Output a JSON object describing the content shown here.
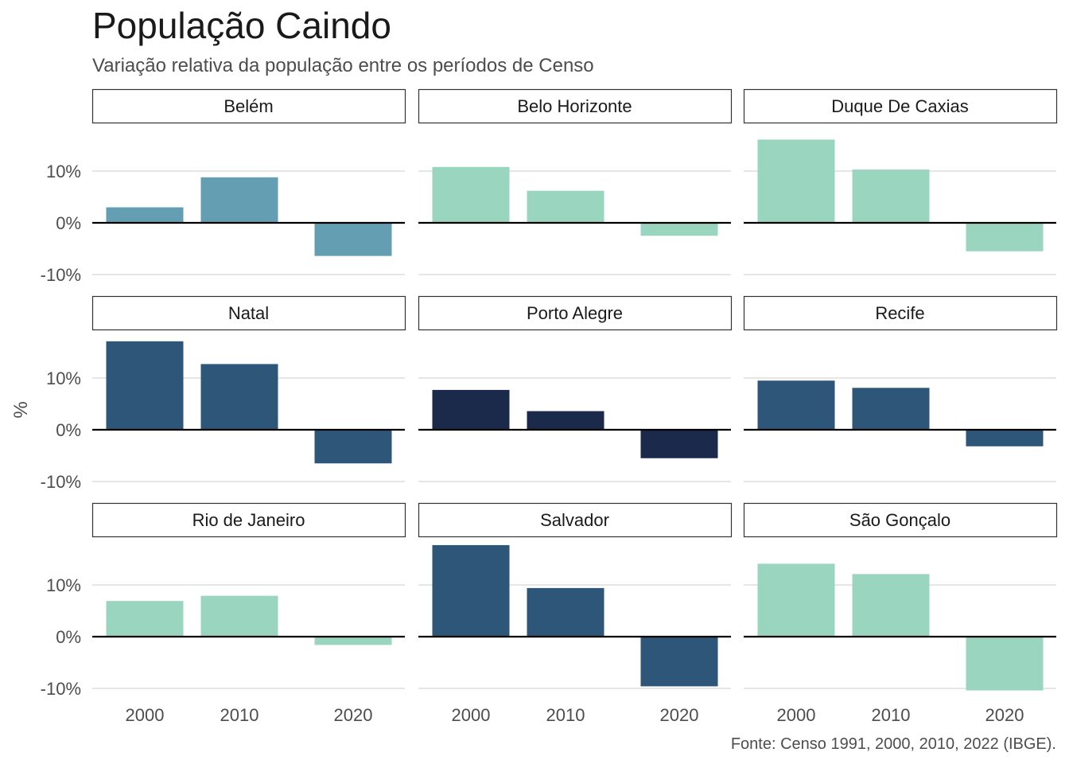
{
  "title": "População Caindo",
  "subtitle": "Variação relativa da população entre os períodos de Censo",
  "caption": "Fonte: Censo 1991, 2000, 2010, 2022 (IBGE).",
  "colors": {
    "light": "#9ad5c0",
    "mid": "#649eb3",
    "dark": "#2e5679",
    "darkest": "#1b2a4a",
    "grid": "#e6e6e6",
    "zero": "#000000",
    "text": "#1a1a1a",
    "subtext": "#4d4d4d"
  },
  "chart_data": {
    "type": "bar",
    "ylabel": "%",
    "xlabel": "",
    "categories": [
      "2000",
      "2010",
      "2020"
    ],
    "ylim": [
      -10,
      18
    ],
    "yticks": [
      -10,
      0,
      10
    ],
    "ytick_labels": [
      "-10%",
      "0%",
      "10%"
    ],
    "grid": true,
    "facets": [
      {
        "name": "Belém",
        "values": [
          3.0,
          8.8,
          -6.4
        ],
        "color": "mid"
      },
      {
        "name": "Belo Horizonte",
        "values": [
          10.8,
          6.2,
          -2.5
        ],
        "color": "light"
      },
      {
        "name": "Duque De Caxias",
        "values": [
          16.1,
          10.3,
          -5.5
        ],
        "color": "light"
      },
      {
        "name": "Natal",
        "values": [
          17.1,
          12.7,
          -6.5
        ],
        "color": "dark"
      },
      {
        "name": "Porto Alegre",
        "values": [
          7.7,
          3.6,
          -5.5
        ],
        "color": "darkest"
      },
      {
        "name": "Recife",
        "values": [
          9.5,
          8.1,
          -3.2
        ],
        "color": "dark"
      },
      {
        "name": "Rio de Janeiro",
        "values": [
          6.9,
          7.9,
          -1.6
        ],
        "color": "light"
      },
      {
        "name": "Salvador",
        "values": [
          17.7,
          9.4,
          -9.6
        ],
        "color": "dark"
      },
      {
        "name": "São Gonçalo",
        "values": [
          14.1,
          12.1,
          -10.4
        ],
        "color": "light"
      }
    ]
  }
}
